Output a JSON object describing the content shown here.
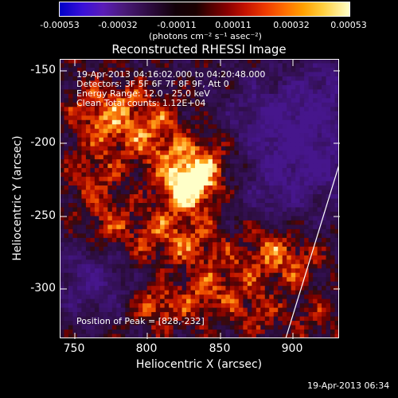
{
  "colorbar": {
    "tick_labels": [
      "-0.00053",
      "-0.00032",
      "-0.00011",
      "0.00011",
      "0.00032",
      "0.00053"
    ],
    "units": "(photons cm⁻² s⁻¹ asec⁻²)"
  },
  "plot": {
    "title": "Reconstructed RHESSI Image",
    "xlabel": "Heliocentric X (arcsec)",
    "ylabel": "Heliocentric Y (arcsec)",
    "x_ticks": [
      "750",
      "800",
      "850",
      "900"
    ],
    "y_ticks": [
      "-150",
      "-200",
      "-250",
      "-300"
    ],
    "x_range": [
      740,
      932
    ],
    "y_range": [
      -337,
      -145
    ],
    "peak_position": [
      828,
      -232
    ]
  },
  "info": {
    "time_range": "19-Apr-2013 04:16:02.000 to 04:20:48.000",
    "detectors": "Detectors: 3F 5F 6F 7F 8F 9F, Att 0",
    "energy_range": "Energy Range: 12.0 - 25.0 keV",
    "algorithm": "Clean     Total counts: 1.12E+04",
    "peak": "Position of Peak = [828,-232]"
  },
  "footer": {
    "timestamp": "19-Apr-2013 06:34"
  },
  "colors": {
    "background": "#000000",
    "negative": "#3a1655",
    "positive_low": "#8a0000",
    "positive_mid": "#ff6a00",
    "positive_high": "#ffffc8",
    "limb": "#ffffff"
  }
}
